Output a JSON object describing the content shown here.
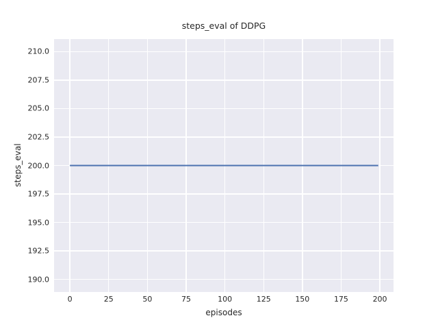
{
  "chart_data": {
    "type": "line",
    "title": "steps_eval of DDPG",
    "xlabel": "episodes",
    "ylabel": "steps_eval",
    "series": [
      {
        "name": "steps_eval",
        "color": "#4c72b0",
        "x": [
          0,
          199
        ],
        "y": [
          200.0,
          200.0
        ],
        "description_of_data": "constant value 200.0 for every episode from 0 to 199"
      }
    ],
    "x_ticks": [
      0,
      25,
      50,
      75,
      100,
      125,
      150,
      175,
      200
    ],
    "x_tick_labels": [
      "0",
      "25",
      "50",
      "75",
      "100",
      "125",
      "150",
      "175",
      "200"
    ],
    "y_ticks": [
      190.0,
      192.5,
      195.0,
      197.5,
      200.0,
      202.5,
      205.0,
      207.5,
      210.0
    ],
    "y_tick_labels": [
      "190.0",
      "192.5",
      "195.0",
      "197.5",
      "200.0",
      "202.5",
      "205.0",
      "207.5",
      "210.0"
    ],
    "xlim": [
      -10.2,
      208.8
    ],
    "ylim": [
      188.9,
      211.1
    ],
    "grid": true,
    "legend": "none",
    "style": {
      "plot_background": "#eaeaf2",
      "grid_color": "#ffffff",
      "figure_background": "#ffffff",
      "text_color": "#262626",
      "line_width": 2
    }
  }
}
